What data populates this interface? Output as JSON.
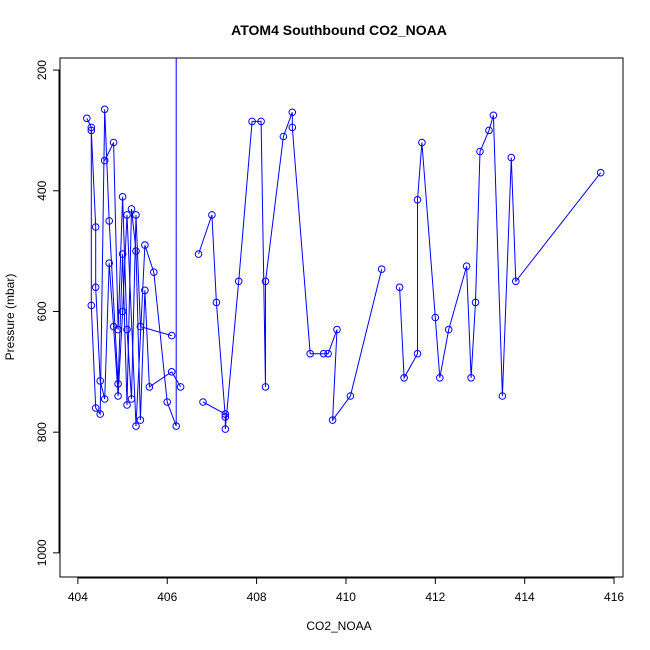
{
  "chart_data": {
    "type": "line",
    "title": "ATOM4 Southbound CO2_NOAA",
    "xlabel": "CO2_NOAA",
    "ylabel": "Pressure (mbar)",
    "xlim": [
      403.6,
      416.2
    ],
    "ylim": [
      1040,
      180
    ],
    "y_reversed": true,
    "x_ticks": [
      404,
      406,
      408,
      410,
      412,
      414,
      416
    ],
    "y_ticks": [
      200,
      400,
      600,
      800,
      1000
    ],
    "grid": false,
    "legend": "none",
    "series": [
      {
        "color": "#0000ff",
        "marker": "open-circle",
        "x": [
          404.3,
          404.4,
          404.4,
          404.5,
          404.6,
          404.7,
          404.8,
          404.9,
          405.0,
          405.1,
          405.3,
          405.5,
          405.7,
          406.0,
          406.2
        ],
        "y": [
          300,
          460,
          560,
          715,
          745,
          520,
          625,
          740,
          600,
          440,
          790,
          490,
          535,
          750,
          790
        ],
        "line_ends_y": 170
      },
      {
        "color": "#0000ff",
        "marker": "open-circle",
        "x": [
          404.2,
          404.3,
          404.3,
          404.4,
          404.5,
          404.6,
          404.7,
          404.9,
          405.0,
          405.1,
          405.2,
          405.3,
          405.4,
          405.5,
          405.6,
          406.1,
          406.3
        ],
        "y": [
          280,
          295,
          590,
          760,
          770,
          265,
          450,
          720,
          505,
          755,
          430,
          500,
          780,
          565,
          725,
          700,
          725
        ]
      },
      {
        "color": "#0000ff",
        "marker": "open-circle",
        "x": [
          404.6,
          404.8,
          404.9,
          405.0,
          405.1,
          405.2,
          405.3,
          405.4,
          406.1
        ],
        "y": [
          350,
          320,
          630,
          410,
          630,
          745,
          440,
          625,
          640
        ]
      },
      {
        "color": "#0000ff",
        "marker": "open-circle",
        "x": [
          406.7,
          407.0,
          407.1,
          407.3,
          407.3,
          407.6,
          407.9,
          408.1,
          408.2,
          408.2,
          408.6,
          408.8,
          408.8,
          409.2,
          409.5,
          409.6,
          409.8,
          409.7,
          410.1,
          410.8
        ],
        "y": [
          505,
          440,
          585,
          775,
          795,
          550,
          285,
          285,
          725,
          550,
          310,
          270,
          295,
          670,
          670,
          670,
          630,
          780,
          740,
          530
        ]
      },
      {
        "color": "#0000ff",
        "marker": "open-circle",
        "x": [
          406.8,
          407.3
        ],
        "y": [
          750,
          770
        ]
      },
      {
        "color": "#0000ff",
        "marker": "open-circle",
        "x": [
          411.2,
          411.3,
          411.6,
          411.6,
          411.7,
          412.0,
          412.1,
          412.3,
          412.7,
          412.8,
          412.9,
          413.0,
          413.2,
          413.3,
          413.5,
          413.7,
          413.8,
          415.7
        ],
        "y": [
          560,
          710,
          670,
          415,
          320,
          610,
          710,
          630,
          525,
          710,
          585,
          335,
          300,
          275,
          740,
          345,
          550,
          370
        ]
      }
    ]
  }
}
